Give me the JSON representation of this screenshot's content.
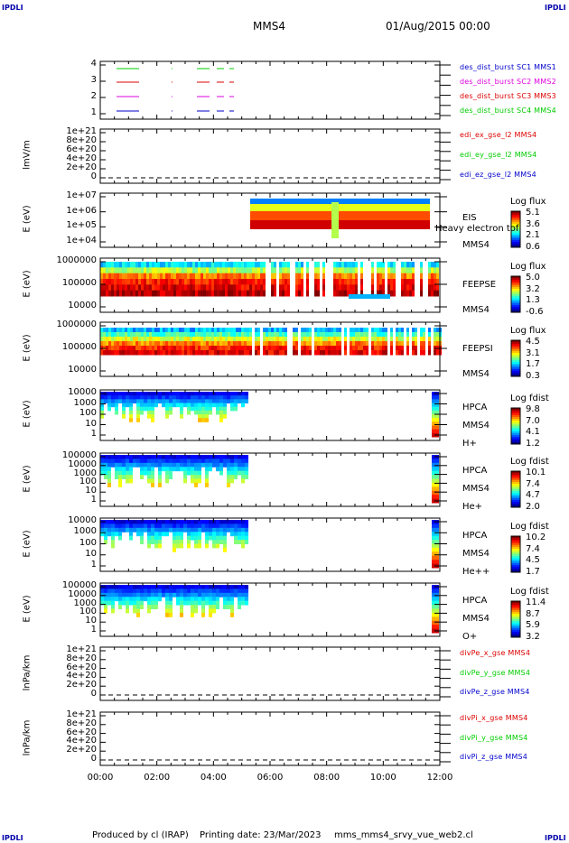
{
  "corners": {
    "tl": "IPDLI",
    "tr": "IPDLI",
    "bl": "IPDLI",
    "br": "IPDLI"
  },
  "header": {
    "spacecraft": "MMS4",
    "date": "01/Aug/2015 00:00"
  },
  "footer": {
    "produced": "Produced by cl (IRAP)",
    "printing": "Printing date: 23/Mar/2023",
    "file": "mms_mms4_srvy_vue_web2.cl"
  },
  "x_axis": {
    "ticks": [
      "00:00",
      "02:00",
      "04:00",
      "06:00",
      "08:00",
      "10:00",
      "12:00"
    ]
  },
  "colors": {
    "red": "#dd0000",
    "green": "#00cc00",
    "blue": "#0000cc",
    "magenta": "#dd00dd"
  },
  "chart_data": [
    {
      "type": "line",
      "panel": "burst",
      "yticks": [
        "4",
        "3",
        "2",
        "1"
      ],
      "legend": [
        {
          "text": "des_dist_burst SC1 MMS1",
          "color": "#0000cc"
        },
        {
          "text": "des_dist_burst SC2 MMS2",
          "color": "#dd00dd"
        },
        {
          "text": "des_dist_burst SC3 MMS3",
          "color": "#dd0000"
        },
        {
          "text": "des_dist_burst SC4 MMS4",
          "color": "#00cc00"
        }
      ]
    },
    {
      "type": "line",
      "panel": "edi",
      "ylabel": "lmV/m",
      "yticks": [
        "1e+21",
        "8e+20",
        "6e+20",
        "4e+20",
        "2e+20",
        "0"
      ],
      "legend": [
        {
          "text": "edi_ex_gse_l2 MMS4",
          "color": "#dd0000"
        },
        {
          "text": "edi_ey_gse_l2 MMS4",
          "color": "#00cc00"
        },
        {
          "text": "edi_ez_gse_l2 MMS4",
          "color": "#0000cc"
        }
      ]
    },
    {
      "type": "heatmap",
      "panel": "eis",
      "ylabel": "E (eV)",
      "yticks": [
        "1e+07",
        "1e+06",
        "1e+05",
        "1e+04"
      ],
      "side": [
        "EIS",
        "Heavy electron tof",
        "MMS4"
      ],
      "cb_title": "Log flux",
      "cb_values": [
        "5.1",
        "3.6",
        "2.1",
        "0.6"
      ]
    },
    {
      "type": "heatmap",
      "panel": "feepse",
      "ylabel": "E (eV)",
      "yticks": [
        "1000000",
        "100000",
        "10000"
      ],
      "side": [
        "FEEPSE",
        "MMS4"
      ],
      "cb_title": "Log flux",
      "cb_values": [
        "5.0",
        "3.2",
        "1.3",
        "-0.6"
      ]
    },
    {
      "type": "heatmap",
      "panel": "feepsi",
      "ylabel": "E (eV)",
      "yticks": [
        "1000000",
        "100000",
        "10000"
      ],
      "side": [
        "FEEPSI",
        "MMS4"
      ],
      "cb_title": "Log flux",
      "cb_values": [
        "4.5",
        "3.1",
        "1.7",
        "0.3"
      ]
    },
    {
      "type": "heatmap",
      "panel": "hpca_h",
      "ylabel": "E (eV)",
      "yticks": [
        "10000",
        "1000",
        "100",
        "10",
        "1"
      ],
      "side": [
        "HPCA",
        "MMS4",
        "H+"
      ],
      "cb_title": "Log fdist",
      "cb_values": [
        "9.8",
        "7.0",
        "4.1",
        "1.2"
      ]
    },
    {
      "type": "heatmap",
      "panel": "hpca_he",
      "ylabel": "E (eV)",
      "yticks": [
        "100000",
        "10000",
        "1000",
        "100",
        "10",
        "1"
      ],
      "side": [
        "HPCA",
        "MMS4",
        "He+"
      ],
      "cb_title": "Log fdist",
      "cb_values": [
        "10.1",
        "7.4",
        "4.7",
        "2.0"
      ]
    },
    {
      "type": "heatmap",
      "panel": "hpca_hepp",
      "ylabel": "E (eV)",
      "yticks": [
        "10000",
        "1000",
        "100",
        "10",
        "1"
      ],
      "side": [
        "HPCA",
        "MMS4",
        "He++"
      ],
      "cb_title": "Log fdist",
      "cb_values": [
        "10.2",
        "7.4",
        "4.5",
        "1.7"
      ]
    },
    {
      "type": "heatmap",
      "panel": "hpca_o",
      "ylabel": "E (eV)",
      "yticks": [
        "100000",
        "10000",
        "1000",
        "100",
        "10",
        "1"
      ],
      "side": [
        "HPCA",
        "MMS4",
        "O+"
      ],
      "cb_title": "Log fdist",
      "cb_values": [
        "11.4",
        "8.7",
        "5.9",
        "3.2"
      ]
    },
    {
      "type": "line",
      "panel": "divpe",
      "ylabel": "lnPa/km",
      "yticks": [
        "1e+21",
        "8e+20",
        "6e+20",
        "4e+20",
        "2e+20",
        "0"
      ],
      "legend": [
        {
          "text": "divPe_x_gse MMS4",
          "color": "#dd0000"
        },
        {
          "text": "divPe_y_gse MMS4",
          "color": "#00cc00"
        },
        {
          "text": "divPe_z_gse MMS4",
          "color": "#0000cc"
        }
      ]
    },
    {
      "type": "line",
      "panel": "divpi",
      "ylabel": "lnPa/km",
      "yticks": [
        "1e+21",
        "8e+20",
        "6e+20",
        "4e+20",
        "2e+20",
        "0"
      ],
      "legend": [
        {
          "text": "divPi_x_gse MMS4",
          "color": "#dd0000"
        },
        {
          "text": "divPi_y_gse MMS4",
          "color": "#00cc00"
        },
        {
          "text": "divPi_z_gse MMS4",
          "color": "#0000cc"
        }
      ]
    }
  ]
}
